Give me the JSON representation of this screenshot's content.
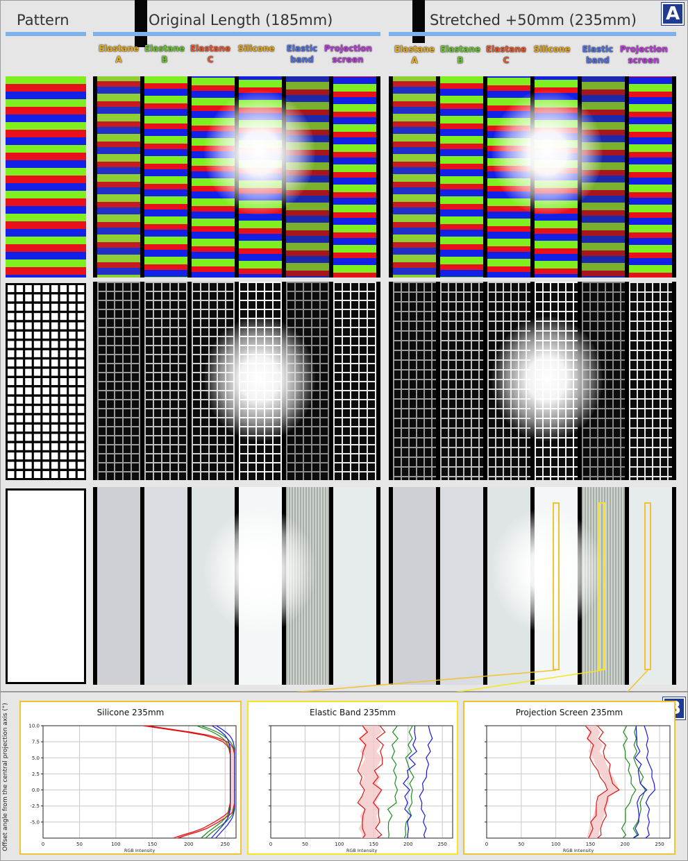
{
  "panel_a": {
    "label": "A",
    "headers": {
      "pattern": "Pattern",
      "original": "Original Length (185mm)",
      "stretched": "Stretched +50mm (235mm)"
    },
    "materials": [
      {
        "line1": "Elastane",
        "line2": "A",
        "color": "#e8b020"
      },
      {
        "line1": "Elastane",
        "line2": "B",
        "color": "#6cc430"
      },
      {
        "line1": "Elastane",
        "line2": "C",
        "color": "#e8562a"
      },
      {
        "line1": "Silicone",
        "line2": "",
        "color": "#e8a818"
      },
      {
        "line1": "Elastic",
        "line2": "band",
        "color": "#4f6fe0"
      },
      {
        "line1": "Projection",
        "line2": "screen",
        "color": "#b83ad8"
      }
    ],
    "rows": [
      "rgb-stripes",
      "grid",
      "white"
    ],
    "stripe_colors": [
      "#80ef20",
      "#e8111b",
      "#1320e8"
    ]
  },
  "panel_b": {
    "label": "B",
    "y_axis_label": "Offset angle from the central projection axis (°)",
    "series_colors": {
      "red": "#e01010",
      "green": "#1a8a1a",
      "blue": "#1515e8",
      "band": "#f4c8c8"
    }
  },
  "chart_data": [
    {
      "type": "line",
      "title": "Silicone 235mm",
      "xlabel": "RGB Intensity",
      "ylabel": "Offset angle from the central projection axis (°)",
      "xlim": [
        0,
        265
      ],
      "ylim": [
        -7.5,
        10
      ],
      "xticks": [
        0,
        50,
        100,
        150,
        200,
        250
      ],
      "yticks": [
        10.0,
        7.5,
        5.0,
        2.5,
        0.0,
        -2.5,
        -5.0
      ],
      "ytick_labels": [
        "10.0",
        "7.5",
        "5.0",
        "2.5",
        "0.0",
        "-2.5",
        "-5.0"
      ],
      "grid": true,
      "y": [
        10,
        9.5,
        9,
        8.5,
        8,
        7.5,
        7,
        6.5,
        6,
        5.5,
        5,
        4,
        3,
        2,
        1,
        0,
        -1,
        -2,
        -2.5,
        -3,
        -3.5,
        -4,
        -4.5,
        -5,
        -5.5,
        -6,
        -6.5,
        -7,
        -7.5
      ],
      "series": [
        {
          "name": "",
          "color": "red",
          "values": [
            140,
            170,
            200,
            225,
            240,
            250,
            255,
            258,
            259,
            260,
            260,
            260,
            260,
            260,
            260,
            260,
            260,
            260,
            259,
            258,
            257,
            252,
            245,
            238,
            230,
            222,
            210,
            195,
            182
          ]
        },
        {
          "name": "",
          "color": "green",
          "values": [
            214,
            226,
            236,
            244,
            250,
            254,
            257,
            259,
            260,
            260,
            260,
            260,
            260,
            260,
            260,
            260,
            260,
            260,
            260,
            259,
            258,
            256,
            252,
            248,
            242,
            236,
            230,
            225,
            220
          ]
        },
        {
          "name": "",
          "color": "blue",
          "values": [
            235,
            242,
            248,
            253,
            256,
            258,
            259,
            260,
            260,
            260,
            260,
            260,
            260,
            260,
            260,
            260,
            260,
            260,
            260,
            260,
            259,
            258,
            256,
            253,
            250,
            246,
            242,
            238,
            234
          ]
        }
      ],
      "band_width": 6
    },
    {
      "type": "line",
      "title": "Elastic  Band 235mm",
      "xlabel": "RGB Intensity",
      "xlim": [
        0,
        265
      ],
      "ylim": [
        -7.5,
        10
      ],
      "xticks": [
        0,
        50,
        100,
        150,
        200,
        250
      ],
      "yticks": [
        10.0,
        7.5,
        5.0,
        2.5,
        0.0,
        -2.5,
        -5.0
      ],
      "ytick_labels": [
        "",
        "",
        "",
        "",
        "",
        "",
        ""
      ],
      "grid": true,
      "y": [
        10,
        9,
        8,
        7,
        6,
        5,
        4,
        3,
        2,
        1,
        0,
        -1,
        -2,
        -3,
        -4,
        -5,
        -6,
        -7,
        -7.5
      ],
      "series": [
        {
          "name": "",
          "color": "red",
          "values": [
            145,
            150,
            140,
            148,
            142,
            150,
            145,
            140,
            148,
            143,
            150,
            146,
            140,
            148,
            142,
            145,
            140,
            146,
            143
          ]
        },
        {
          "name": "",
          "color": "green",
          "values": [
            198,
            194,
            199,
            192,
            196,
            190,
            193,
            189,
            192,
            188,
            191,
            187,
            190,
            186,
            189,
            186,
            188,
            185,
            187
          ]
        },
        {
          "name": "",
          "color": "blue",
          "values": [
            220,
            217,
            221,
            215,
            219,
            213,
            217,
            212,
            216,
            211,
            215,
            210,
            214,
            210,
            213,
            209,
            212,
            208,
            211
          ]
        }
      ],
      "band_width": 24
    },
    {
      "type": "line",
      "title": "Projection  Screen 235mm",
      "xlabel": "RGB Intensity",
      "xlim": [
        0,
        265
      ],
      "ylim": [
        -7.5,
        10
      ],
      "xticks": [
        0,
        50,
        100,
        150,
        200,
        250
      ],
      "xtick_labels": [
        "0",
        "50",
        "100",
        "150",
        "200",
        "250"
      ],
      "yticks": [
        10.0,
        7.5,
        5.0,
        2.5,
        0.0,
        -2.5,
        -5.0
      ],
      "ytick_labels": [
        "",
        "",
        "",
        "",
        "",
        "",
        ""
      ],
      "grid": true,
      "y": [
        10,
        9,
        8,
        7,
        6,
        5,
        4,
        3,
        2,
        1,
        0,
        -1,
        -2,
        -3,
        -4,
        -5,
        -6,
        -7,
        -7.5
      ],
      "series": [
        {
          "name": "",
          "color": "red",
          "values": [
            150,
            156,
            152,
            160,
            155,
            162,
            165,
            170,
            175,
            180,
            184,
            170,
            168,
            165,
            162,
            158,
            156,
            154,
            152
          ]
        },
        {
          "name": "",
          "color": "green",
          "values": [
            212,
            210,
            213,
            209,
            212,
            210,
            213,
            211,
            214,
            212,
            218,
            212,
            210,
            212,
            209,
            211,
            208,
            210,
            208
          ]
        },
        {
          "name": "",
          "color": "blue",
          "values": [
            222,
            220,
            223,
            221,
            224,
            222,
            226,
            228,
            232,
            236,
            240,
            232,
            228,
            230,
            225,
            226,
            222,
            224,
            220
          ]
        }
      ],
      "band_width": 16
    }
  ]
}
